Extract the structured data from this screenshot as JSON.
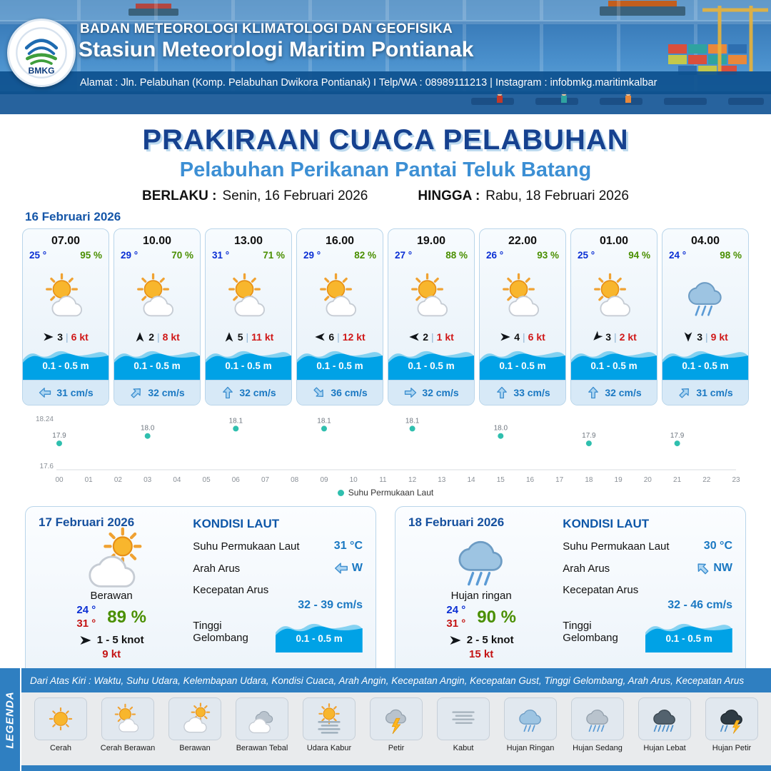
{
  "header": {
    "logo_label": "BMKG",
    "org": "BADAN METEOROLOGI KLIMATOLOGI DAN GEOFISIKA",
    "station": "Stasiun Meteorologi Maritim Pontianak",
    "address": "Alamat : Jln. Pelabuhan (Komp. Pelabuhan Dwikora Pontianak) I Telp/WA : 08989111213 | Instagram : infobmkg.maritimkalbar"
  },
  "title": {
    "main": "PRAKIRAAN CUACA PELABUHAN",
    "subtitle": "Pelabuhan Perikanan Pantai Teluk Batang",
    "valid_from_label": "BERLAKU :",
    "valid_from": "Senin, 16 Februari 2026",
    "valid_to_label": "HINGGA :",
    "valid_to": "Rabu, 18 Februari 2026"
  },
  "forecast": {
    "date": "16 Februari 2026",
    "sep": "|",
    "cards": [
      {
        "time": "07.00",
        "temp": "25 °",
        "humidity": "95 %",
        "icon": "cerah-berawan",
        "wind_dir_deg": 0,
        "wind_val": "3",
        "wind_gust": "6 kt",
        "wave": "0.1 - 0.5 m",
        "current_dir_deg": 180,
        "current": "31 cm/s"
      },
      {
        "time": "10.00",
        "temp": "29 °",
        "humidity": "70 %",
        "icon": "cerah-berawan",
        "wind_dir_deg": -90,
        "wind_val": "2",
        "wind_gust": "8 kt",
        "wave": "0.1 - 0.5 m",
        "current_dir_deg": -45,
        "current": "32 cm/s"
      },
      {
        "time": "13.00",
        "temp": "31 °",
        "humidity": "71 %",
        "icon": "cerah-berawan",
        "wind_dir_deg": -90,
        "wind_val": "5",
        "wind_gust": "11 kt",
        "wave": "0.1 - 0.5 m",
        "current_dir_deg": -90,
        "current": "32 cm/s"
      },
      {
        "time": "16.00",
        "temp": "29 °",
        "humidity": "82 %",
        "icon": "cerah-berawan",
        "wind_dir_deg": 180,
        "wind_val": "6",
        "wind_gust": "12 kt",
        "wave": "0.1 - 0.5 m",
        "current_dir_deg": 45,
        "current": "36 cm/s"
      },
      {
        "time": "19.00",
        "temp": "27 °",
        "humidity": "88 %",
        "icon": "cerah-berawan",
        "wind_dir_deg": 180,
        "wind_val": "2",
        "wind_gust": "1 kt",
        "wave": "0.1 - 0.5 m",
        "current_dir_deg": 0,
        "current": "32 cm/s"
      },
      {
        "time": "22.00",
        "temp": "26 °",
        "humidity": "93 %",
        "icon": "cerah-berawan",
        "wind_dir_deg": 0,
        "wind_val": "4",
        "wind_gust": "6 kt",
        "wave": "0.1 - 0.5 m",
        "current_dir_deg": -90,
        "current": "33 cm/s"
      },
      {
        "time": "01.00",
        "temp": "25 °",
        "humidity": "94 %",
        "icon": "cerah-berawan",
        "wind_dir_deg": 135,
        "wind_val": "3",
        "wind_gust": "2 kt",
        "wave": "0.1 - 0.5 m",
        "current_dir_deg": -90,
        "current": "32 cm/s"
      },
      {
        "time": "04.00",
        "temp": "24 °",
        "humidity": "98 %",
        "icon": "hujan-ringan",
        "wind_dir_deg": 90,
        "wind_val": "3",
        "wind_gust": "9 kt",
        "wave": "0.1 - 0.5 m",
        "current_dir_deg": -45,
        "current": "31 cm/s"
      }
    ]
  },
  "chart_data": {
    "type": "scatter",
    "x": [
      0,
      3,
      6,
      9,
      12,
      15,
      18,
      21
    ],
    "values": [
      17.9,
      18.0,
      18.1,
      18.1,
      18.1,
      18.0,
      17.9,
      17.9
    ],
    "x_ticks": [
      "00",
      "01",
      "02",
      "03",
      "04",
      "05",
      "06",
      "07",
      "08",
      "09",
      "10",
      "11",
      "12",
      "13",
      "14",
      "15",
      "16",
      "17",
      "18",
      "19",
      "20",
      "21",
      "22",
      "23"
    ],
    "ylim": [
      17.6,
      18.24
    ],
    "y_ticks": [
      "18.24",
      "17.6"
    ],
    "legend": "Suhu Permukaan Laut",
    "point_color": "#2fbfae",
    "grid": false,
    "legend_position": "bottom"
  },
  "daily": [
    {
      "date": "17 Februari 2026",
      "icon": "berawan",
      "condition": "Berawan",
      "temp_min": "24 °",
      "temp_max": "31 °",
      "humidity": "89 %",
      "wind_dir_deg": 0,
      "wind_range": "1 - 5 knot",
      "gust": "9 kt",
      "sea": {
        "title": "KONDISI LAUT",
        "sst_label": "Suhu Permukaan Laut",
        "sst": "31 °C",
        "dir_label": "Arah Arus",
        "dir": "W",
        "dir_deg": 180,
        "speed_label": "Kecepatan Arus",
        "speed": "32 - 39 cm/s",
        "wave_label": "Tinggi Gelombang",
        "wave": "0.1 - 0.5 m"
      }
    },
    {
      "date": "18 Februari 2026",
      "icon": "hujan-ringan",
      "condition": "Hujan ringan",
      "temp_min": "24 °",
      "temp_max": "31 °",
      "humidity": "90 %",
      "wind_dir_deg": 0,
      "wind_range": "2 - 5 knot",
      "gust": "15 kt",
      "sea": {
        "title": "KONDISI LAUT",
        "sst_label": "Suhu Permukaan Laut",
        "sst": "30 °C",
        "dir_label": "Arah Arus",
        "dir": "NW",
        "dir_deg": -135,
        "speed_label": "Kecepatan Arus",
        "speed": "32 - 46 cm/s",
        "wave_label": "Tinggi Gelombang",
        "wave": "0.1 - 0.5 m"
      }
    }
  ],
  "legend": {
    "label": "LEGENDA",
    "description": "Dari Atas Kiri : Waktu, Suhu Udara, Kelembapan Udara, Kondisi Cuaca, Arah Angin, Kecepatan Angin, Kecepatan Gust, Tinggi Gelombang, Arah Arus, Kecepatan Arus",
    "items": [
      {
        "icon": "cerah",
        "label": "Cerah"
      },
      {
        "icon": "cerah-berawan",
        "label": "Cerah Berawan"
      },
      {
        "icon": "berawan",
        "label": "Berawan"
      },
      {
        "icon": "berawan-tebal",
        "label": "Berawan Tebal"
      },
      {
        "icon": "udara-kabur",
        "label": "Udara Kabur"
      },
      {
        "icon": "petir",
        "label": "Petir"
      },
      {
        "icon": "kabut",
        "label": "Kabut"
      },
      {
        "icon": "hujan-ringan",
        "label": "Hujan Ringan"
      },
      {
        "icon": "hujan-sedang",
        "label": "Hujan Sedang"
      },
      {
        "icon": "hujan-lebat",
        "label": "Hujan Lebat"
      },
      {
        "icon": "hujan-petir",
        "label": "Hujan Petir"
      }
    ]
  },
  "colors": {
    "header_blue": "#2f7fc1",
    "title_navy": "#16418f",
    "subtitle_blue": "#3c8fd4",
    "temp_blue": "#0b2fd4",
    "humidity_green": "#4a8f00",
    "gust_red": "#d01818",
    "wave_blue": "#00a2e6",
    "current_blue": "#1a78c2",
    "chart_teal": "#2fbfae"
  }
}
